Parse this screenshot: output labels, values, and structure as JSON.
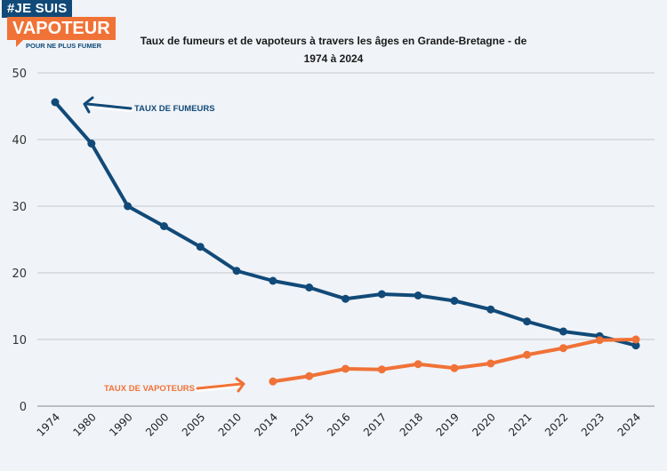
{
  "logo": {
    "line1": "#JE SUIS",
    "line2": "VAPOTEUR",
    "line3": "POUR NE PLUS FUMER"
  },
  "colors": {
    "smokers": "#114a78",
    "vapers": "#f07237",
    "grid": "#c4c7cc",
    "background": "#f0f3f8"
  },
  "chart_data": {
    "type": "line",
    "title": "Taux de fumeurs et de vapoteurs à travers les âges en Grande-Bretagne - de 1974 à 2024",
    "xlabel": "",
    "ylabel": "",
    "ylim": [
      0,
      50
    ],
    "yticks": [
      0,
      10,
      20,
      30,
      40,
      50
    ],
    "grid": true,
    "legend": "inline annotations",
    "categories": [
      "1974",
      "1980",
      "1990",
      "2000",
      "2005",
      "2010",
      "2014",
      "2015",
      "2016",
      "2017",
      "2018",
      "2019",
      "2020",
      "2021",
      "2022",
      "2023",
      "2024"
    ],
    "series": [
      {
        "name": "TAUX DE FUMEURS",
        "color": "#114a78",
        "values": [
          45.6,
          39.4,
          30.0,
          27.0,
          23.9,
          20.3,
          18.8,
          17.8,
          16.1,
          16.8,
          16.6,
          15.8,
          14.5,
          12.7,
          11.2,
          10.5,
          9.1
        ]
      },
      {
        "name": "TAUX DE VAPOTEURS",
        "color": "#f07237",
        "values": [
          null,
          null,
          null,
          null,
          null,
          null,
          3.7,
          4.5,
          5.6,
          5.5,
          6.3,
          5.7,
          6.4,
          7.7,
          8.7,
          9.9,
          10.0
        ]
      }
    ],
    "annotations": [
      {
        "text": "TAUX DE FUMEURS",
        "series": 0,
        "points_to": "1974"
      },
      {
        "text": "TAUX DE VAPOTEURS",
        "series": 1,
        "points_to": "2014"
      }
    ]
  }
}
